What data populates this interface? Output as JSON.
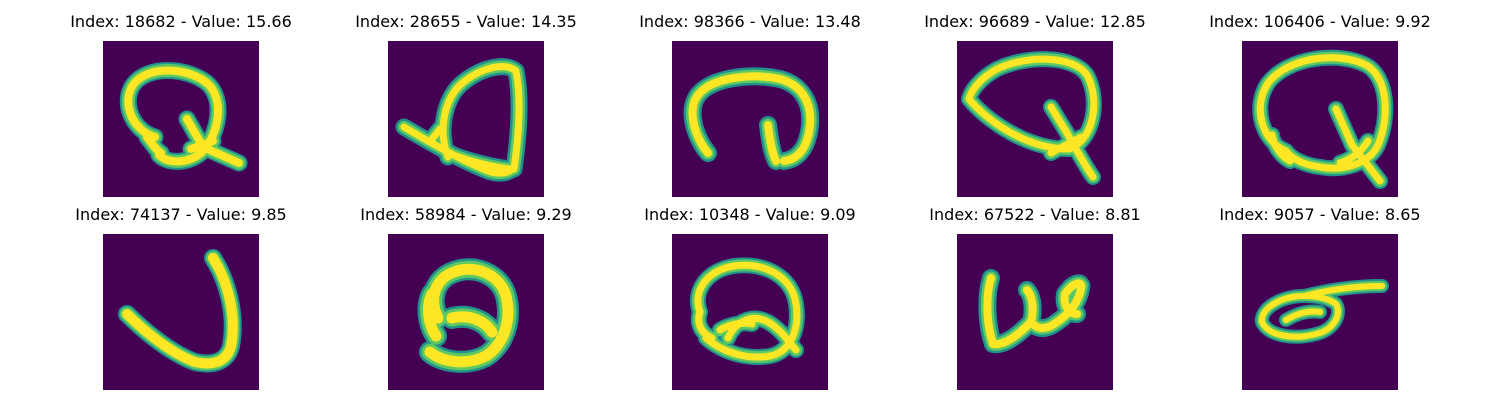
{
  "colors": {
    "background": "#440154",
    "stroke_core": "#fde725",
    "stroke_mid": "#5ec962",
    "stroke_edge": "#21918c"
  },
  "panels": [
    {
      "title": "Index: 18682 - Value: 15.66",
      "glyph": "Q-round"
    },
    {
      "title": "Index: 28655 - Value: 14.35",
      "glyph": "Q-tilted-base"
    },
    {
      "title": "Index: 98366 - Value: 13.48",
      "glyph": "open-loop"
    },
    {
      "title": "Index: 96689 - Value: 12.85",
      "glyph": "Q-pointed"
    },
    {
      "title": "Index: 106406 - Value: 9.92",
      "glyph": "Q-large"
    },
    {
      "title": "Index: 74137 - Value: 9.85",
      "glyph": "check-stroke"
    },
    {
      "title": "Index: 58984 - Value: 9.29",
      "glyph": "loop-base"
    },
    {
      "title": "Index: 10348 - Value: 9.09",
      "glyph": "double-loop"
    },
    {
      "title": "Index: 67522 - Value: 8.81",
      "glyph": "w-stroke"
    },
    {
      "title": "Index: 9057 - Value: 8.65",
      "glyph": "eye-flat"
    }
  ]
}
